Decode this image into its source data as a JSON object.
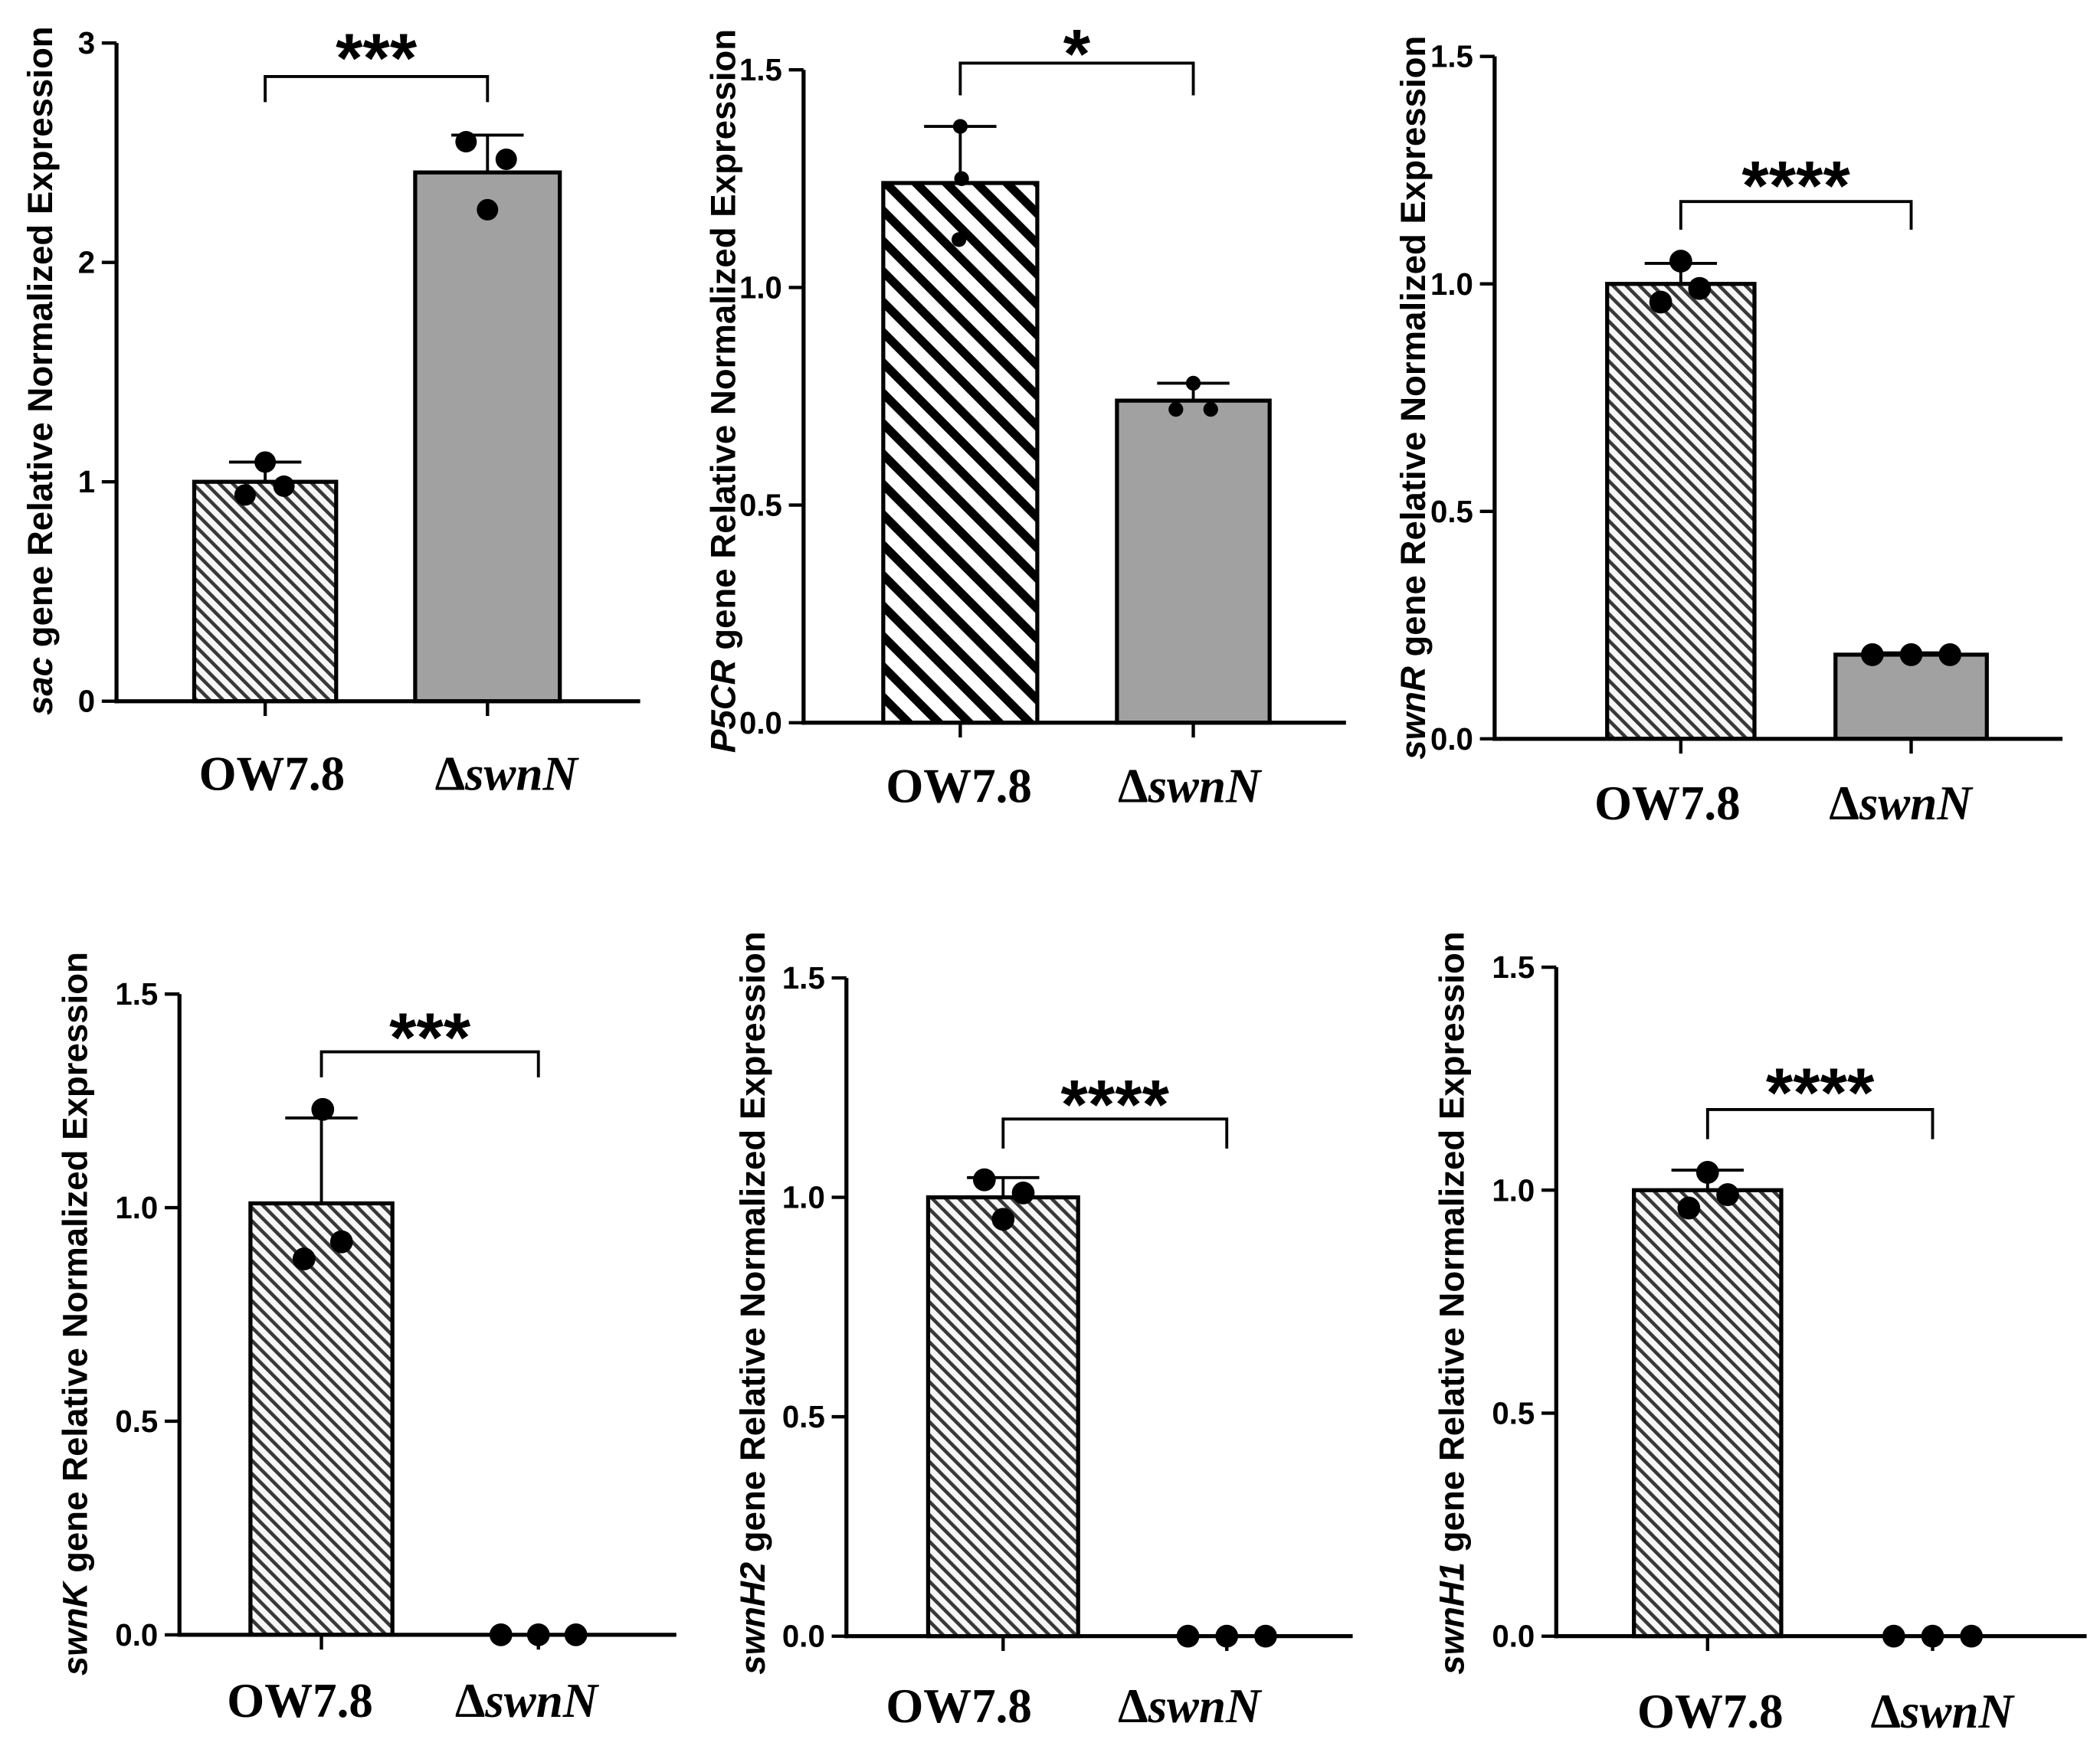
{
  "figure": {
    "colors": {
      "mutant_bar_fill": "#a1a1a1",
      "hatch_line": "#383838",
      "axis": "#000000",
      "point": "#000000"
    }
  },
  "chart_data": [
    {
      "type": "bar",
      "categories": [
        "OW7.8",
        "ΔswnN"
      ],
      "ylabel": "sac gene Relative Normalized Expression",
      "ylim": [
        0,
        3
      ],
      "yticks": [
        "0",
        "1",
        "2",
        "3"
      ],
      "values": [
        1.0,
        2.41
      ],
      "error": [
        0.09,
        0.17
      ],
      "points": [
        [
          0.94,
          1.09,
          0.98
        ],
        [
          2.55,
          2.24,
          2.47
        ]
      ],
      "significance": "***",
      "grid": false
    },
    {
      "type": "bar",
      "categories": [
        "OW7.8",
        "ΔswnN"
      ],
      "ylabel": "P5CR gene Relative Normalized Expression",
      "ylim": [
        0,
        1.5
      ],
      "yticks": [
        "0.0",
        "0.5",
        "1.0",
        "1.5"
      ],
      "values": [
        1.24,
        0.74
      ],
      "error": [
        0.13,
        0.04
      ],
      "points": [
        [
          1.37,
          1.25,
          1.11
        ],
        [
          0.72,
          0.78,
          0.72
        ]
      ],
      "significance": "*",
      "grid": false
    },
    {
      "type": "bar",
      "categories": [
        "OW7.8",
        "ΔswnN"
      ],
      "ylabel": "swnR gene Relative Normalized Expression",
      "ylim": [
        0,
        1.5
      ],
      "yticks": [
        "0.0",
        "0.5",
        "1.0",
        "1.5"
      ],
      "values": [
        1.0,
        0.185
      ],
      "error": [
        0.045,
        0.004
      ],
      "points": [
        [
          0.96,
          1.05,
          0.99
        ],
        [
          0.185,
          0.185,
          0.185
        ]
      ],
      "significance": "****",
      "grid": false
    },
    {
      "type": "bar",
      "categories": [
        "OW7.8",
        "ΔswnN"
      ],
      "ylabel": "swnK gene Relative Normalized Expression",
      "ylim": [
        0,
        1.5
      ],
      "yticks": [
        "0.0",
        "0.5",
        "1.0",
        "1.5"
      ],
      "values": [
        1.01,
        0.0
      ],
      "error": [
        0.2,
        0.0
      ],
      "points": [
        [
          0.88,
          1.23,
          0.92
        ],
        [
          0,
          0,
          0
        ]
      ],
      "significance": "***",
      "grid": false
    },
    {
      "type": "bar",
      "categories": [
        "OW7.8",
        "ΔswnN"
      ],
      "ylabel": "swnH2 gene Relative Normalized Expression",
      "ylim": [
        0,
        1.5
      ],
      "yticks": [
        "0.0",
        "0.5",
        "1.0",
        "1.5"
      ],
      "values": [
        1.0,
        0.0
      ],
      "error": [
        0.045,
        0.0
      ],
      "points": [
        [
          1.04,
          0.95,
          1.01
        ],
        [
          0,
          0,
          0
        ]
      ],
      "significance": "****",
      "grid": false
    },
    {
      "type": "bar",
      "categories": [
        "OW7.8",
        "ΔswnN"
      ],
      "ylabel": "swnH1 gene Relative Normalized Expression",
      "ylim": [
        0,
        1.5
      ],
      "yticks": [
        "0.0",
        "0.5",
        "1.0",
        "1.5"
      ],
      "values": [
        1.0,
        0.0
      ],
      "error": [
        0.045,
        0.0
      ],
      "points": [
        [
          0.96,
          1.04,
          0.99
        ],
        [
          0,
          0,
          0
        ]
      ],
      "significance": "****",
      "grid": false
    }
  ]
}
